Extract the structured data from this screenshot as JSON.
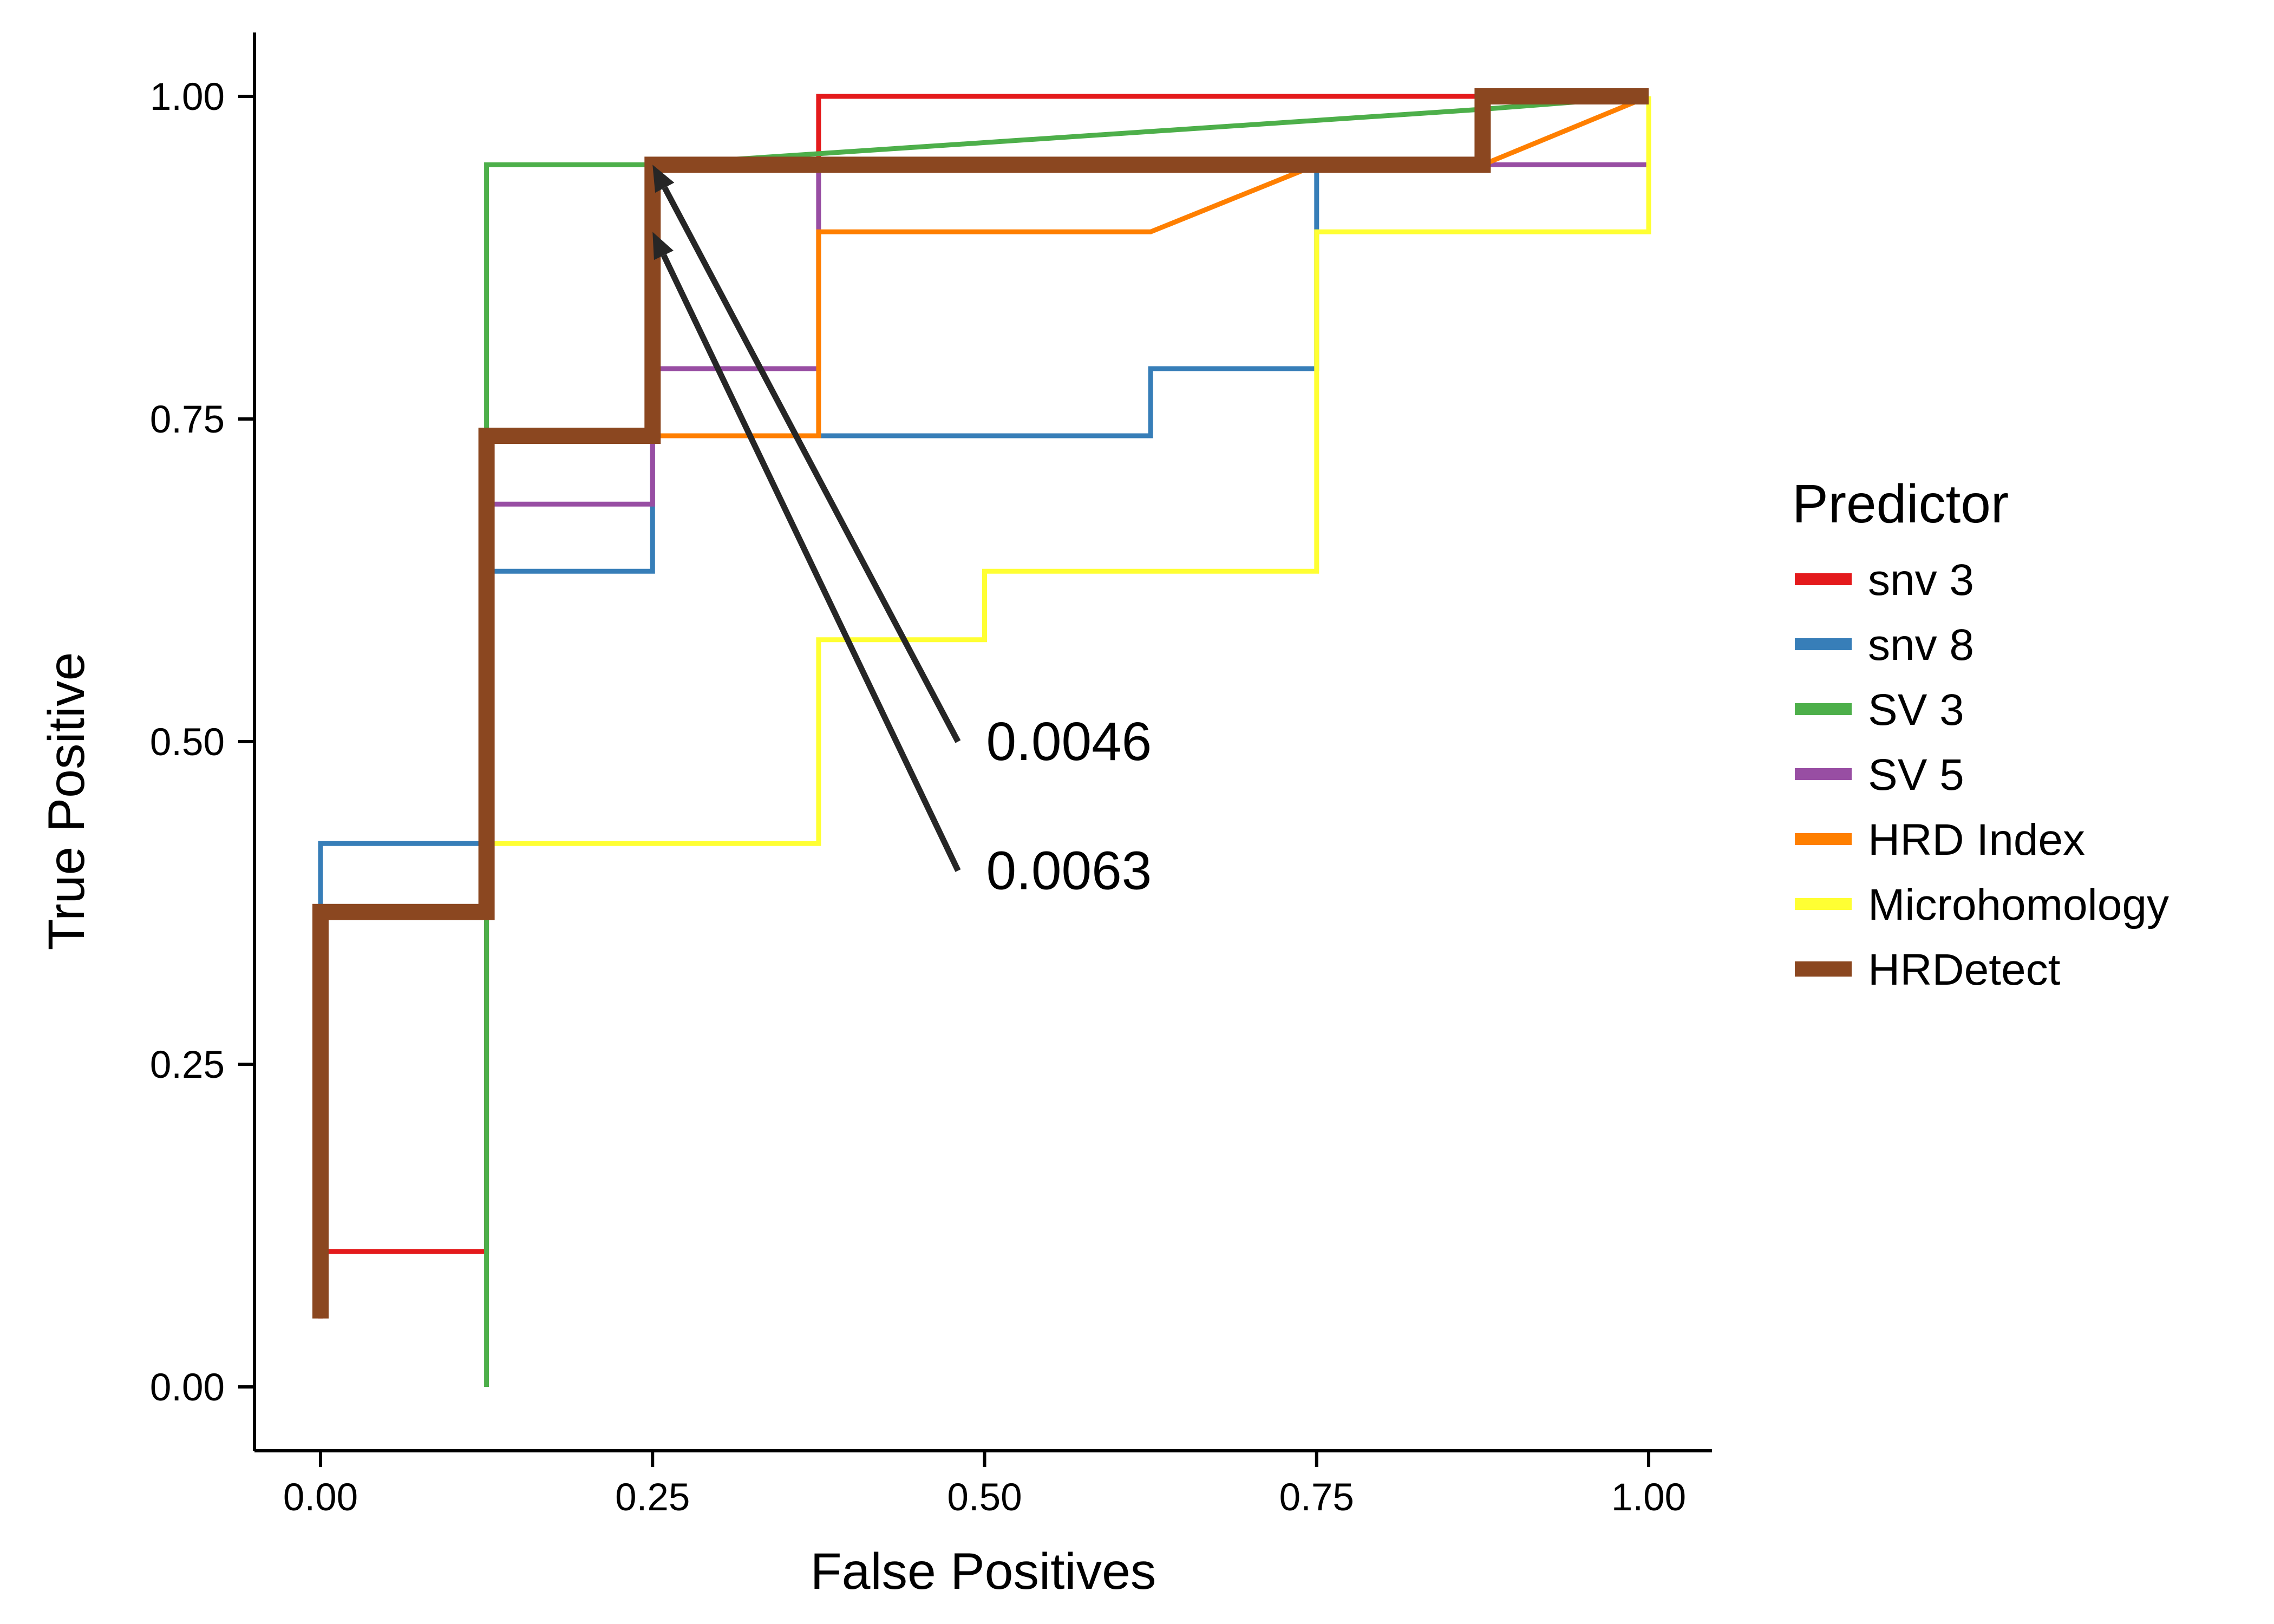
{
  "chart_data": {
    "type": "line",
    "title": "",
    "xlabel": "False Positives",
    "ylabel": "True Positive",
    "xlim": [
      -0.05,
      1.05
    ],
    "ylim": [
      -0.05,
      1.05
    ],
    "x_ticks": [
      0,
      0.25,
      0.5,
      0.75,
      1
    ],
    "x_tick_labels": [
      "0.00",
      "0.25",
      "0.50",
      "0.75",
      "1.00"
    ],
    "y_ticks": [
      0,
      0.25,
      0.5,
      0.75,
      1
    ],
    "y_tick_labels": [
      "0.00",
      "0.25",
      "0.50",
      "0.75",
      "1.00"
    ],
    "grid": false,
    "legend": {
      "title": "Predictor",
      "position": "right"
    },
    "series": [
      {
        "name": "snv 3",
        "color": "#e41a1c",
        "emphasis": false,
        "points": [
          [
            0,
            0.053
          ],
          [
            0,
            0.105
          ],
          [
            0.125,
            0.105
          ],
          [
            0.125,
            0.368
          ],
          [
            0.125,
            0.737
          ],
          [
            0.25,
            0.737
          ],
          [
            0.25,
            0.947
          ],
          [
            0.375,
            0.947
          ],
          [
            0.375,
            1
          ],
          [
            1,
            1
          ]
        ]
      },
      {
        "name": "snv 8",
        "color": "#377eb8",
        "emphasis": false,
        "points": [
          [
            0,
            0.368
          ],
          [
            0,
            0.421
          ],
          [
            0.125,
            0.421
          ],
          [
            0.125,
            0.632
          ],
          [
            0.25,
            0.632
          ],
          [
            0.25,
            0.737
          ],
          [
            0.625,
            0.737
          ],
          [
            0.625,
            0.789
          ],
          [
            0.75,
            0.789
          ],
          [
            0.75,
            0.947
          ],
          [
            0.875,
            0.947
          ],
          [
            0.875,
            1
          ],
          [
            1,
            1
          ]
        ]
      },
      {
        "name": "SV 3",
        "color": "#4daf4a",
        "emphasis": false,
        "points": [
          [
            0.125,
            0
          ],
          [
            0.125,
            0.947
          ],
          [
            0.25,
            0.947
          ],
          [
            0.875,
            0.99
          ],
          [
            1,
            1
          ]
        ]
      },
      {
        "name": "SV 5",
        "color": "#984ea3",
        "emphasis": false,
        "points": [
          [
            0.125,
            0.684
          ],
          [
            0.25,
            0.684
          ],
          [
            0.25,
            0.789
          ],
          [
            0.375,
            0.789
          ],
          [
            0.375,
            0.947
          ],
          [
            0.875,
            0.947
          ],
          [
            1,
            0.947
          ]
        ]
      },
      {
        "name": "HRD Index",
        "color": "#ff7f00",
        "emphasis": false,
        "points": [
          [
            0.25,
            0.737
          ],
          [
            0.375,
            0.737
          ],
          [
            0.375,
            0.895
          ],
          [
            0.625,
            0.895
          ],
          [
            0.75,
            0.947
          ],
          [
            0.875,
            0.947
          ],
          [
            1,
            1
          ]
        ]
      },
      {
        "name": "Microhomology",
        "color": "#ffff33",
        "emphasis": false,
        "points": [
          [
            0.125,
            0.421
          ],
          [
            0.375,
            0.421
          ],
          [
            0.375,
            0.579
          ],
          [
            0.5,
            0.579
          ],
          [
            0.5,
            0.632
          ],
          [
            0.75,
            0.632
          ],
          [
            0.75,
            0.895
          ],
          [
            1,
            0.895
          ],
          [
            1,
            1
          ]
        ]
      },
      {
        "name": "HRDetect",
        "color": "#8b4720",
        "emphasis": true,
        "points": [
          [
            0,
            0.053
          ],
          [
            0,
            0.368
          ],
          [
            0.125,
            0.368
          ],
          [
            0.125,
            0.737
          ],
          [
            0.25,
            0.737
          ],
          [
            0.25,
            0.947
          ],
          [
            0.875,
            0.947
          ],
          [
            0.875,
            1
          ],
          [
            1,
            1
          ]
        ]
      }
    ],
    "annotations": [
      {
        "text": "0.0046",
        "tail": [
          0.48,
          0.5
        ],
        "head": [
          0.25,
          0.947
        ]
      },
      {
        "text": "0.0063",
        "tail": [
          0.48,
          0.4
        ],
        "head": [
          0.25,
          0.895
        ]
      }
    ]
  }
}
